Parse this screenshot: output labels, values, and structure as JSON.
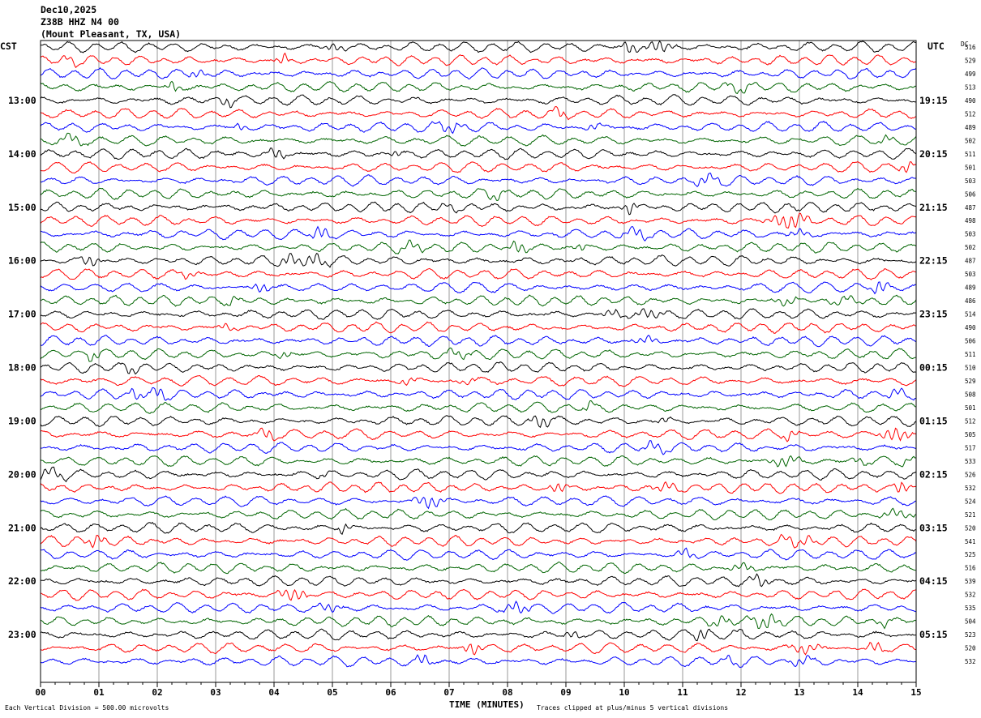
{
  "header": {
    "date": "Dec10,2025",
    "station": "Z38B HHZ N4 00",
    "location": "(Mount Pleasant, TX, USA)"
  },
  "left_tz": "CST",
  "right_tz": "UTC",
  "dc_label": "DC",
  "footer": {
    "scale": "Each Vertical Division =  500.00 microvolts",
    "xlabel": "TIME (MINUTES)",
    "clip_note": "Traces clipped at plus/minus 5 vertical divisions"
  },
  "colors": [
    "#000000",
    "#ff0000",
    "#0000ff",
    "#006400"
  ],
  "chart_data": {
    "type": "line",
    "title": "Z38B HHZ N4 00 (Mount Pleasant, TX, USA) Dec10,2025",
    "xlabel": "TIME (MINUTES)",
    "xlim": [
      0,
      15
    ],
    "x_ticks": [
      "00",
      "01",
      "02",
      "03",
      "04",
      "05",
      "06",
      "07",
      "08",
      "09",
      "10",
      "11",
      "12",
      "13",
      "14",
      "15"
    ],
    "left_hour_labels": [
      "13:00",
      "14:00",
      "15:00",
      "16:00",
      "17:00",
      "18:00",
      "19:00",
      "20:00",
      "21:00",
      "22:00",
      "23:00"
    ],
    "right_hour_labels": [
      "19:15",
      "20:15",
      "21:15",
      "22:15",
      "23:15",
      "00:15",
      "01:15",
      "02:15",
      "03:15",
      "04:15",
      "05:15"
    ],
    "dc_offsets": [
      516,
      529,
      499,
      513,
      490,
      512,
      489,
      502,
      511,
      501,
      503,
      506,
      487,
      498,
      503,
      502,
      487,
      503,
      489,
      486,
      514,
      490,
      506,
      511,
      510,
      529,
      508,
      501,
      512,
      505,
      517,
      533,
      526,
      532,
      524,
      521,
      520,
      541,
      525,
      516,
      539,
      532,
      535,
      504,
      523,
      520,
      532
    ],
    "trace_count": 47,
    "trace_interval_minutes": 15,
    "grid": true
  }
}
